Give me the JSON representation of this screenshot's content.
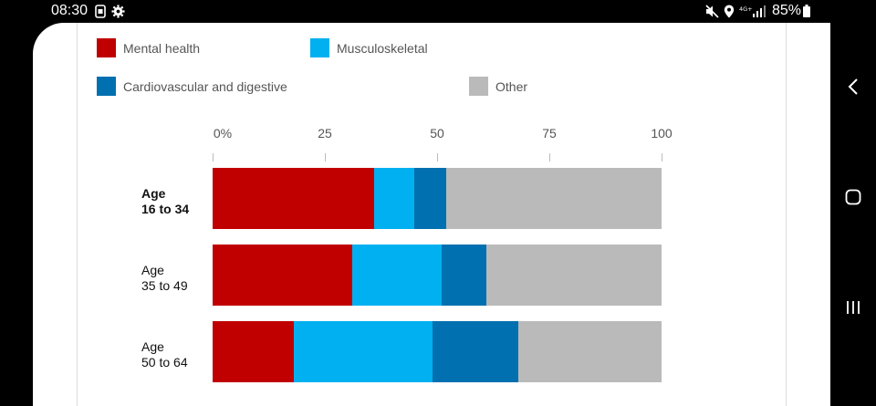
{
  "status_bar": {
    "time": "08:30",
    "battery": "85%",
    "icons": [
      "sim-icon",
      "gear-icon",
      "mute-icon",
      "location-icon",
      "signal-4g-icon",
      "battery-icon"
    ]
  },
  "nav_bar": {
    "icons": [
      "back-icon",
      "home-icon",
      "recents-icon"
    ]
  },
  "colors": {
    "mental_health": "#c00000",
    "musculoskeletal": "#00b0f0",
    "cardiovascular": "#0070b0",
    "other": "#bababa"
  },
  "chart_data": {
    "type": "bar",
    "orientation": "horizontal",
    "stacked": true,
    "xlim": [
      0,
      100
    ],
    "x_ticks": [
      "0%",
      "25",
      "50",
      "75",
      "100"
    ],
    "legend_placement": "top",
    "categories": [
      [
        "Age",
        "16 to 34"
      ],
      [
        "Age",
        "35 to 49"
      ],
      [
        "Age",
        "50 to 64"
      ]
    ],
    "series": [
      {
        "name": "Mental health",
        "color": "#c00000",
        "values": [
          36,
          31,
          18
        ]
      },
      {
        "name": "Musculoskeletal",
        "color": "#00b0f0",
        "values": [
          9,
          20,
          31
        ]
      },
      {
        "name": "Cardiovascular and digestive",
        "color": "#0070b0",
        "values": [
          7,
          10,
          19
        ]
      },
      {
        "name": "Other",
        "color": "#bababa",
        "values": [
          48,
          39,
          32
        ]
      }
    ]
  }
}
